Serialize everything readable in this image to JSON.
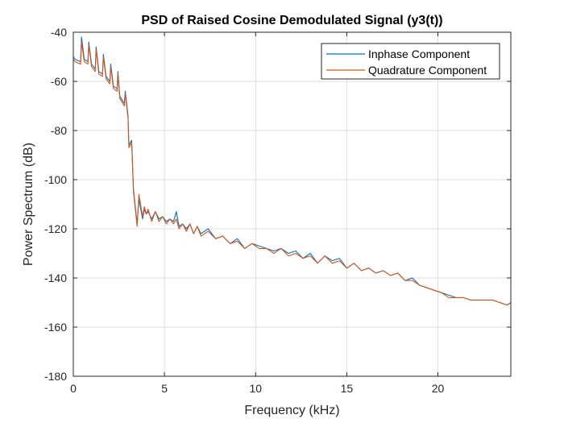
{
  "chart_data": {
    "type": "line",
    "title": "PSD of Raised Cosine Demodulated Signal (y3(t))",
    "xlabel": "Frequency (kHz)",
    "ylabel": "Power Spectrum (dB)",
    "xlim": [
      0,
      24
    ],
    "ylim": [
      -180,
      -40
    ],
    "xticks": [
      0,
      5,
      10,
      15,
      20
    ],
    "yticks": [
      -180,
      -160,
      -140,
      -120,
      -100,
      -80,
      -60,
      -40
    ],
    "xtick_labels": [
      "0",
      "5",
      "10",
      "15",
      "20"
    ],
    "ytick_labels": [
      "-180",
      "-160",
      "-140",
      "-120",
      "-100",
      "-80",
      "-60",
      "-40"
    ],
    "grid": true,
    "legend_position": "top-right",
    "series": [
      {
        "name": "Inphase Component",
        "color": "#0072BD",
        "x": [
          0,
          0.1,
          0.4,
          0.45,
          0.6,
          0.8,
          0.85,
          1.0,
          1.2,
          1.25,
          1.4,
          1.6,
          1.65,
          1.8,
          2.0,
          2.05,
          2.2,
          2.4,
          2.45,
          2.55,
          2.8,
          2.85,
          3.0,
          3.05,
          3.2,
          3.3,
          3.5,
          3.6,
          3.8,
          3.9,
          4.0,
          4.1,
          4.3,
          4.5,
          4.7,
          4.9,
          5.1,
          5.3,
          5.5,
          5.65,
          5.8,
          6.0,
          6.2,
          6.4,
          6.6,
          6.8,
          7.0,
          7.4,
          7.8,
          8.2,
          8.6,
          9.0,
          9.4,
          9.8,
          10.2,
          10.6,
          11.0,
          11.4,
          11.8,
          12.2,
          12.6,
          13.0,
          13.4,
          13.8,
          14.2,
          14.6,
          15.0,
          15.4,
          15.8,
          16.2,
          16.6,
          17.0,
          17.4,
          17.8,
          18.2,
          18.6,
          19.0,
          19.4,
          19.8,
          20.2,
          20.6,
          21.0,
          21.4,
          21.8,
          22.2,
          22.6,
          23.0,
          23.4,
          23.8,
          24.0
        ],
        "values": [
          -50,
          -51,
          -52,
          -42,
          -51,
          -52,
          -44,
          -53,
          -55,
          -46,
          -56,
          -57,
          -49,
          -58,
          -60,
          -53,
          -62,
          -63,
          -56,
          -66,
          -69,
          -64,
          -74,
          -86,
          -84,
          -104,
          -118,
          -108,
          -116,
          -112,
          -114,
          -113,
          -116,
          -113,
          -116,
          -115,
          -117,
          -116,
          -117,
          -113,
          -119,
          -118,
          -120,
          -118,
          -122,
          -119,
          -122,
          -120,
          -124,
          -123,
          -126,
          -124,
          -128,
          -126,
          -127,
          -128,
          -129,
          -128,
          -130,
          -129,
          -132,
          -130,
          -134,
          -131,
          -133,
          -132,
          -136,
          -134,
          -137,
          -136,
          -138,
          -137,
          -139,
          -138,
          -141,
          -140,
          -143,
          -144,
          -145,
          -146,
          -147,
          -148,
          -148,
          -149,
          -149,
          -149,
          -149,
          -150,
          -151,
          -150
        ]
      },
      {
        "name": "Quadrature Component",
        "color": "#D95319",
        "x": [
          0,
          0.1,
          0.4,
          0.45,
          0.6,
          0.8,
          0.85,
          1.0,
          1.2,
          1.25,
          1.4,
          1.6,
          1.65,
          1.8,
          2.0,
          2.05,
          2.2,
          2.4,
          2.45,
          2.55,
          2.8,
          2.85,
          3.0,
          3.05,
          3.2,
          3.3,
          3.5,
          3.6,
          3.8,
          3.9,
          4.0,
          4.1,
          4.3,
          4.5,
          4.7,
          4.9,
          5.1,
          5.3,
          5.5,
          5.65,
          5.8,
          6.0,
          6.2,
          6.4,
          6.6,
          6.8,
          7.0,
          7.4,
          7.8,
          8.2,
          8.6,
          9.0,
          9.4,
          9.8,
          10.2,
          10.6,
          11.0,
          11.4,
          11.8,
          12.2,
          12.6,
          13.0,
          13.4,
          13.8,
          14.2,
          14.6,
          15.0,
          15.4,
          15.8,
          16.2,
          16.6,
          17.0,
          17.4,
          17.8,
          18.2,
          18.6,
          19.0,
          19.4,
          19.8,
          20.2,
          20.6,
          21.0,
          21.4,
          21.8,
          22.2,
          22.6,
          23.0,
          23.4,
          23.8,
          24.0
        ],
        "values": [
          -51,
          -52,
          -53,
          -44,
          -52,
          -53,
          -45,
          -54,
          -56,
          -47,
          -57,
          -58,
          -50,
          -59,
          -61,
          -54,
          -63,
          -64,
          -57,
          -67,
          -70,
          -65,
          -75,
          -87,
          -85,
          -105,
          -119,
          -106,
          -115,
          -111,
          -114,
          -112,
          -117,
          -113,
          -117,
          -115,
          -118,
          -116,
          -118,
          -116,
          -120,
          -118,
          -121,
          -118,
          -122,
          -119,
          -123,
          -121,
          -124,
          -123,
          -126,
          -125,
          -128,
          -126,
          -128,
          -128,
          -130,
          -128,
          -131,
          -130,
          -132,
          -131,
          -134,
          -131,
          -134,
          -133,
          -136,
          -134,
          -137,
          -136,
          -138,
          -137,
          -139,
          -138,
          -141,
          -141,
          -143,
          -144,
          -145,
          -146,
          -148,
          -148,
          -148,
          -149,
          -149,
          -149,
          -149,
          -150,
          -151,
          -150
        ]
      }
    ]
  }
}
